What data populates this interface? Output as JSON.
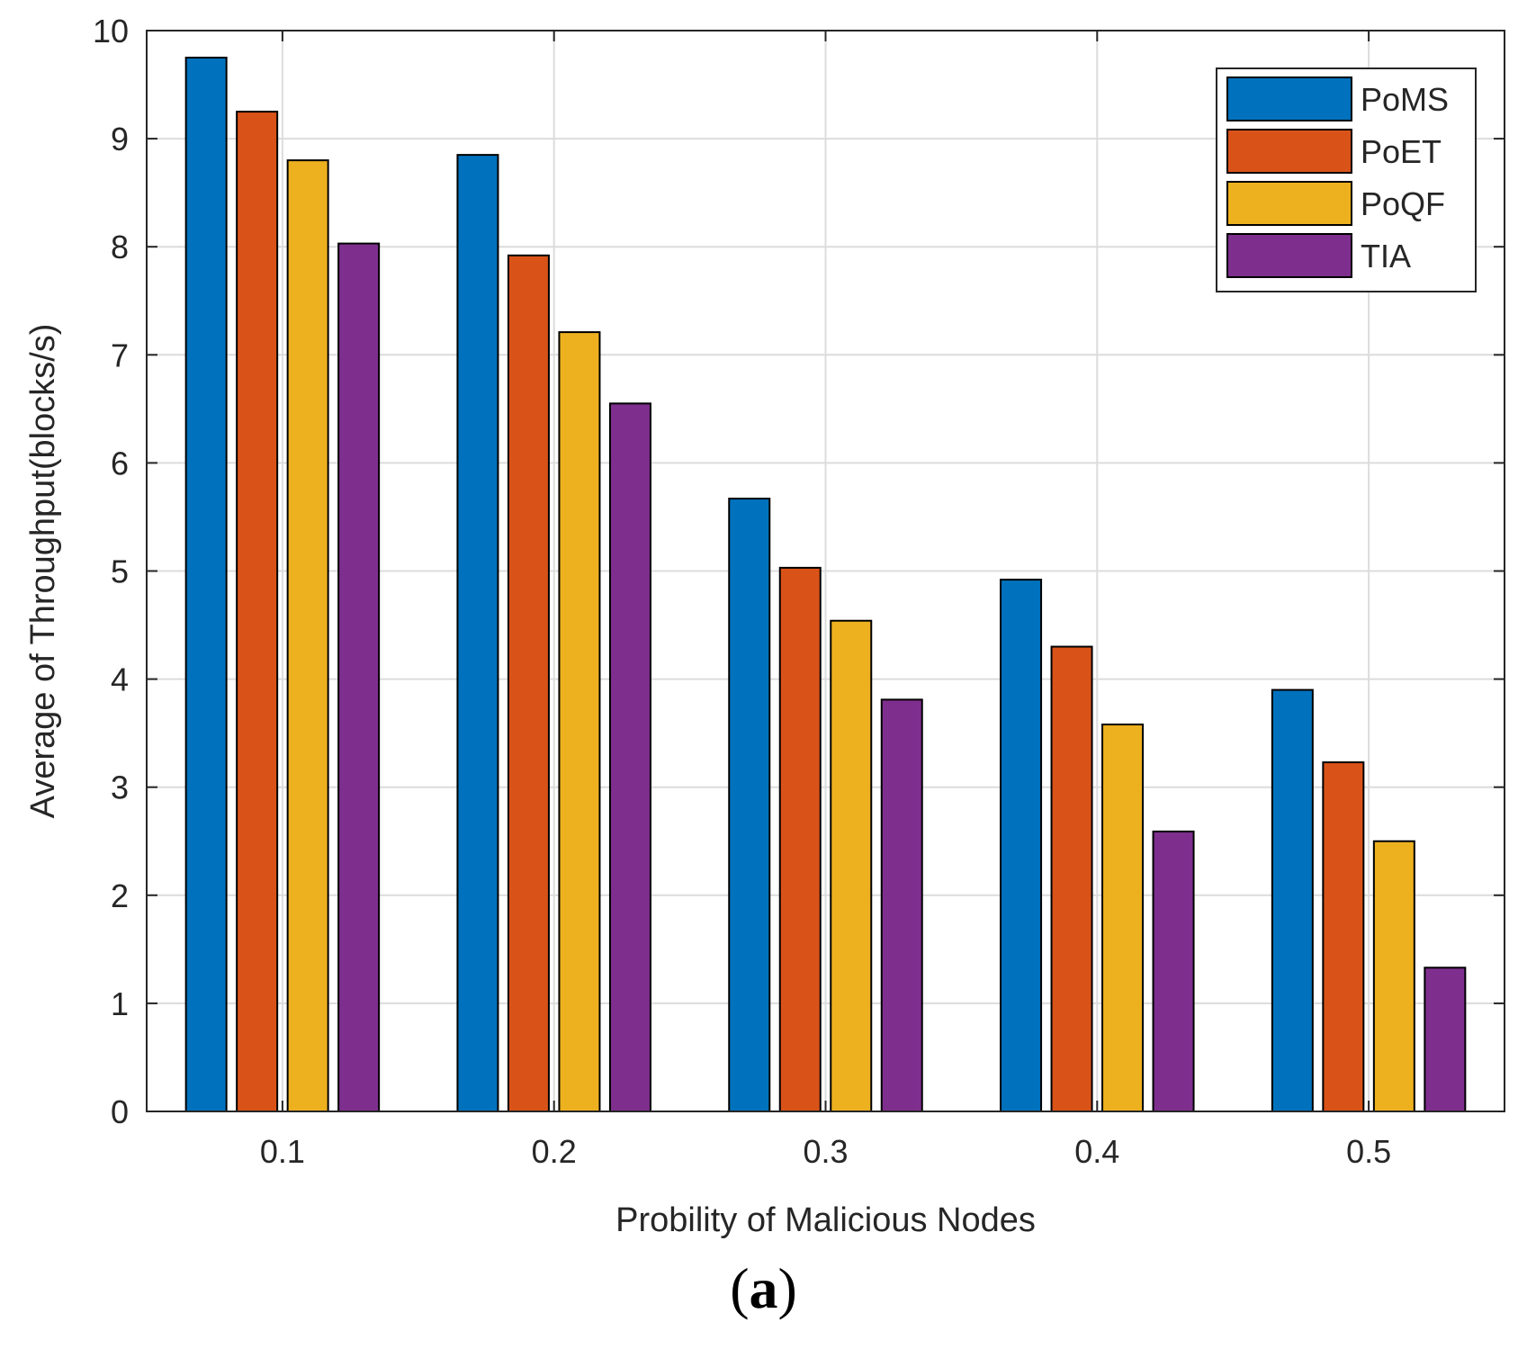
{
  "chart_data": {
    "type": "bar",
    "categories": [
      "0.1",
      "0.2",
      "0.3",
      "0.4",
      "0.5"
    ],
    "series": [
      {
        "name": "PoMS",
        "color": "#0072BD",
        "values": [
          9.75,
          8.85,
          5.67,
          4.92,
          3.9
        ]
      },
      {
        "name": "PoET",
        "color": "#D95319",
        "values": [
          9.25,
          7.92,
          5.03,
          4.3,
          3.23
        ]
      },
      {
        "name": "PoQF",
        "color": "#EDB120",
        "values": [
          8.8,
          7.21,
          4.54,
          3.58,
          2.5
        ]
      },
      {
        "name": "TIA",
        "color": "#7E2F8E",
        "values": [
          8.03,
          6.55,
          3.81,
          2.59,
          1.33
        ]
      }
    ],
    "xlabel": "Probility of Malicious Nodes",
    "ylabel": "Average of Throughput(blocks/s)",
    "ylim": [
      0,
      10
    ],
    "yticks": [
      "0",
      "1",
      "2",
      "3",
      "4",
      "5",
      "6",
      "7",
      "8",
      "9",
      "10"
    ],
    "grid": true,
    "legend_position": "top-right"
  },
  "panel_label": {
    "open": "(",
    "letter": "a",
    "close": ")"
  }
}
